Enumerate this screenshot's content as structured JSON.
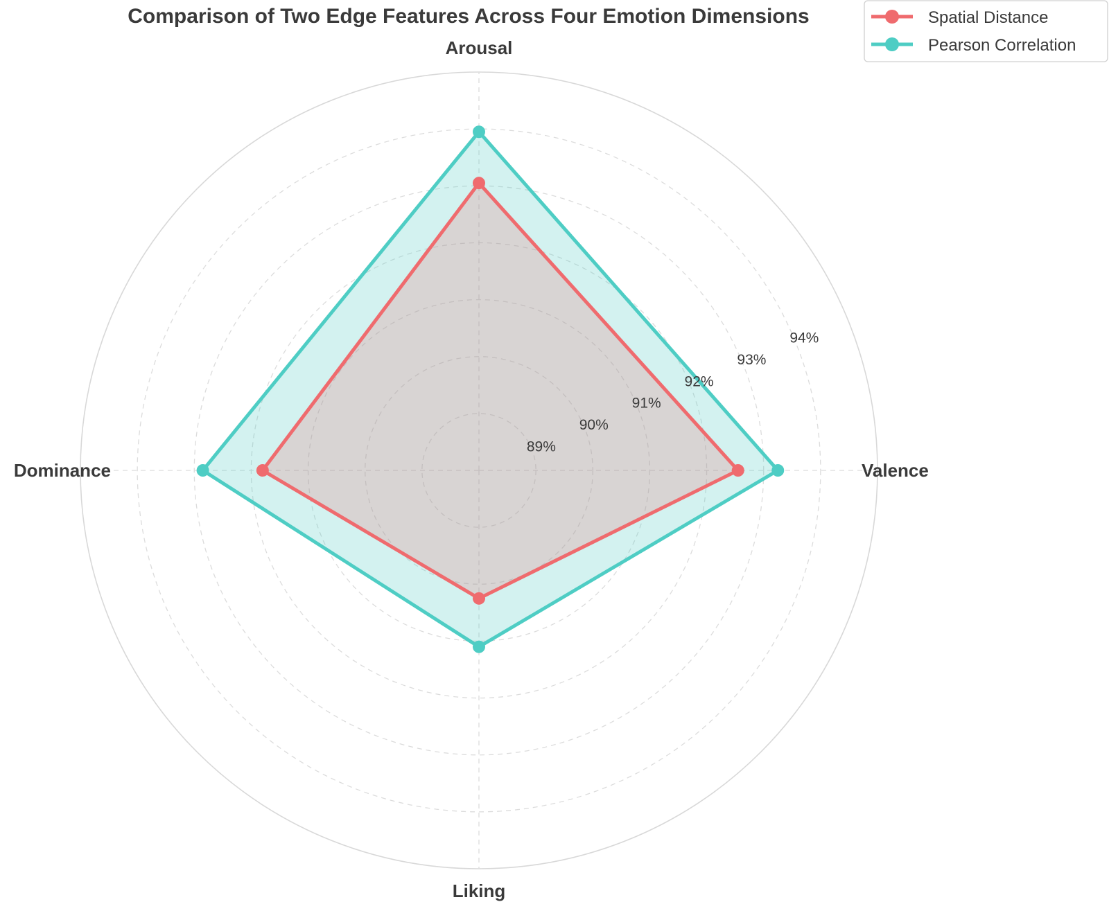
{
  "chart_data": {
    "type": "radar",
    "title": "Comparison of Two Edge Features Across Four Emotion Dimensions",
    "categories": [
      "Valence",
      "Arousal",
      "Dominance",
      "Liking"
    ],
    "r_ticks": [
      89,
      90,
      91,
      92,
      93,
      94
    ],
    "r_tick_labels": [
      "89%",
      "90%",
      "91%",
      "92%",
      "93%",
      "94%"
    ],
    "r_range": [
      88,
      95
    ],
    "grid": true,
    "legend_position": "top-right",
    "series": [
      {
        "name": "Spatial Distance",
        "color": "#ef6b6e",
        "values": [
          92.55,
          93.05,
          91.8,
          90.25
        ]
      },
      {
        "name": "Pearson Correlation",
        "color": "#4ecdc4",
        "values": [
          93.25,
          93.95,
          92.85,
          91.1
        ]
      }
    ]
  }
}
